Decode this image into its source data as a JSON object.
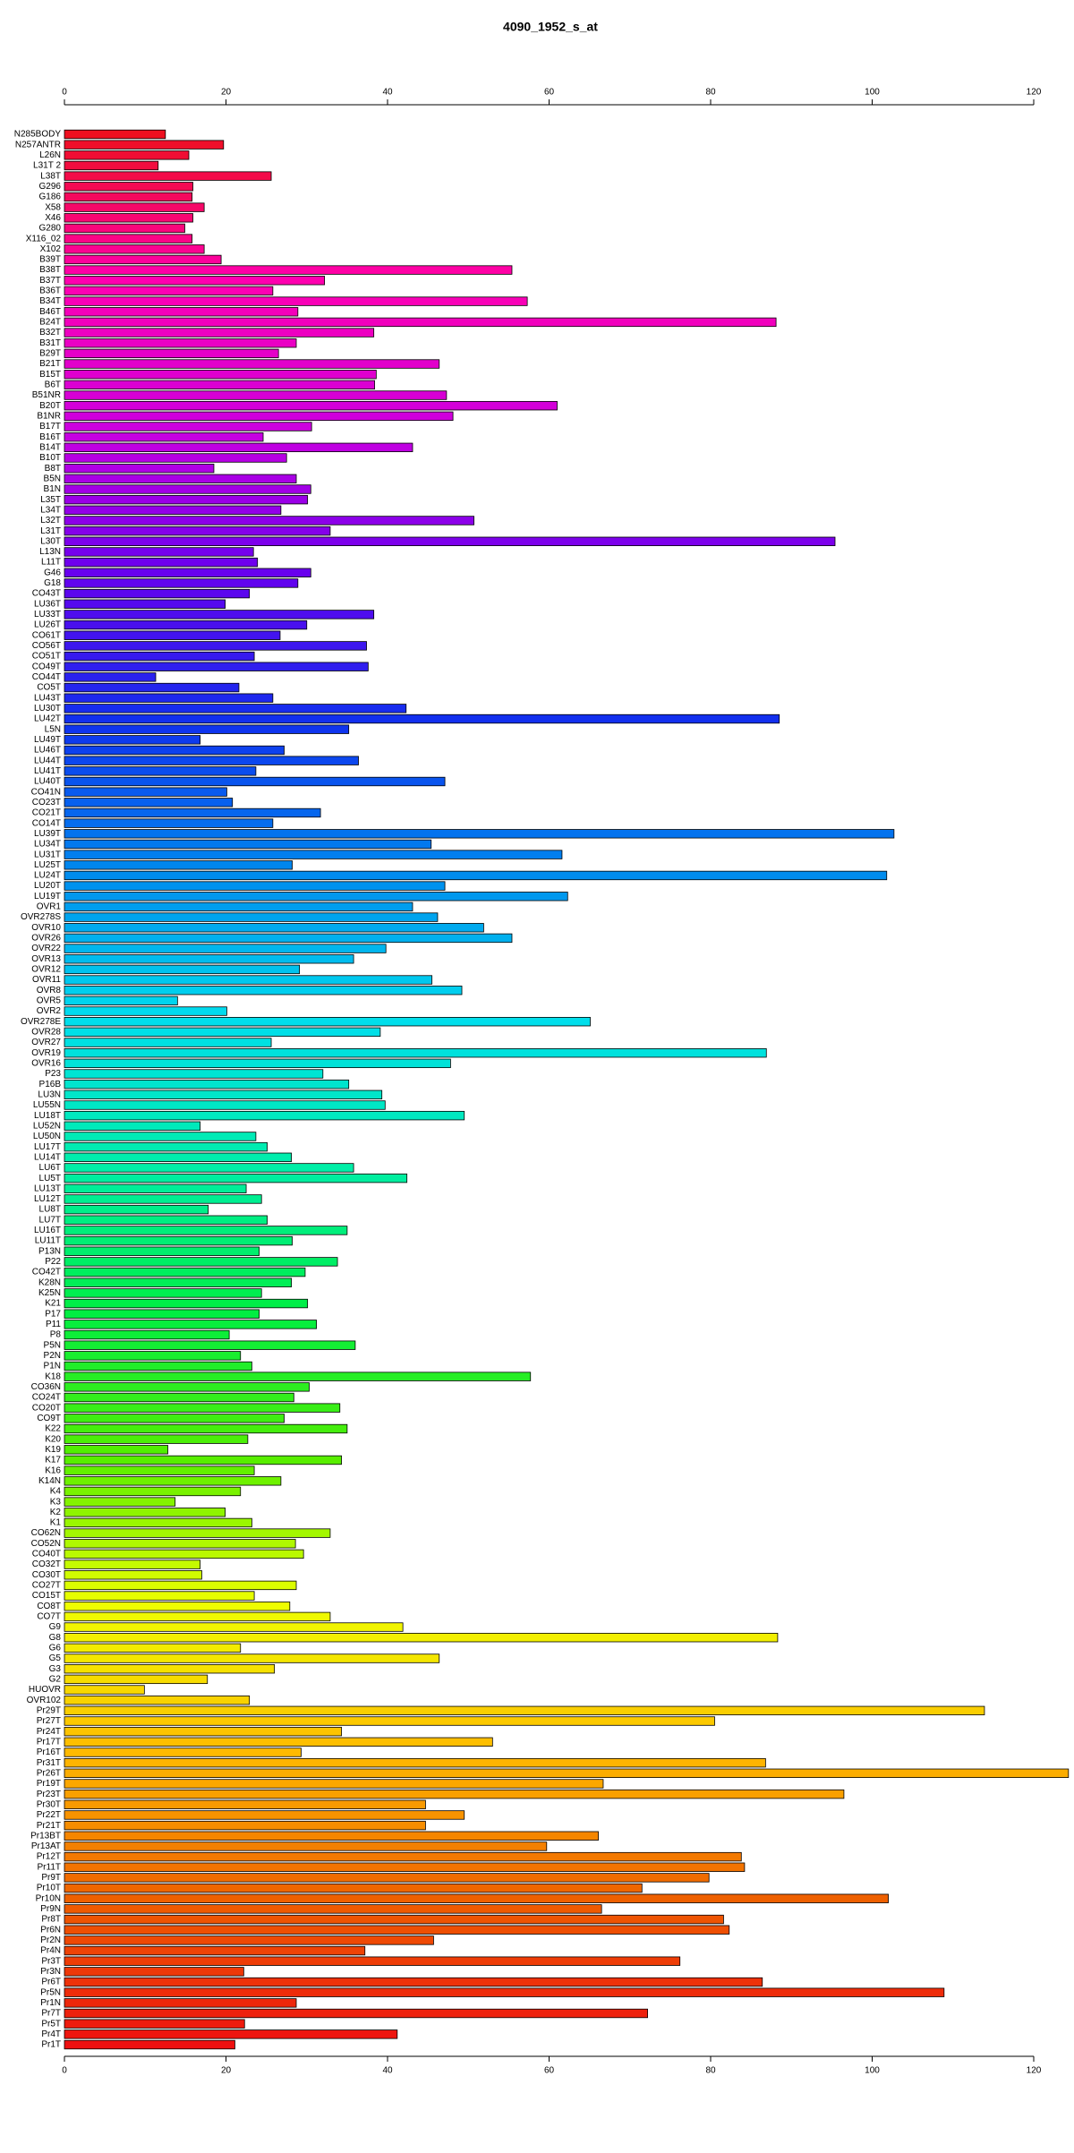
{
  "chart_data": {
    "type": "bar",
    "orientation": "horizontal",
    "title": "4090_1952_s_at",
    "categories": [
      "N285BODY",
      "N257ANTR",
      "L26N",
      "L31T 2",
      "L38T",
      "G296",
      "G186",
      "X58",
      "X46",
      "G280",
      "X116_02",
      "X102",
      "B39T",
      "B38T",
      "B37T",
      "B36T",
      "B34T",
      "B46T",
      "B24T",
      "B32T",
      "B31T",
      "B29T",
      "B21T",
      "B15T",
      "B6T",
      "B51NR",
      "B20T",
      "B1NR",
      "B17T",
      "B16T",
      "B14T",
      "B10T",
      "B8T",
      "B5N",
      "B1N",
      "L35T",
      "L34T",
      "L32T",
      "L31T",
      "L30T",
      "L13N",
      "L11T",
      "G46",
      "G18",
      "CO43T",
      "LU36T",
      "LU33T",
      "LU26T",
      "CO61T",
      "CO56T",
      "CO51T",
      "CO49T",
      "CO44T",
      "CO5T",
      "LU43T",
      "LU30T",
      "LU42T",
      "L5N",
      "LU49T",
      "LU46T",
      "LU44T",
      "LU41T",
      "LU40T",
      "CO41N",
      "CO23T",
      "CO21T",
      "CO14T",
      "LU39T",
      "LU34T",
      "LU31T",
      "LU25T",
      "LU24T",
      "LU20T",
      "LU19T",
      "OVR1",
      "OVR278S",
      "OVR10",
      "OVR26",
      "OVR22",
      "OVR13",
      "OVR12",
      "OVR11",
      "OVR8",
      "OVR5",
      "OVR2",
      "OVR278E",
      "OVR28",
      "OVR27",
      "OVR19",
      "OVR16",
      "P23",
      "P16B",
      "LU3N",
      "LU55N",
      "LU18T",
      "LU52N",
      "LU50N",
      "LU17T",
      "LU14T",
      "LU6T",
      "LU5T",
      "LU13T",
      "LU12T",
      "LU8T",
      "LU7T",
      "LU16T",
      "LU11T",
      "P13N",
      "P22",
      "CO42T",
      "K28N",
      "K25N",
      "K21",
      "P17",
      "P11",
      "P8",
      "P5N",
      "P2N",
      "P1N",
      "K18",
      "CO36N",
      "CO24T",
      "CO20T",
      "CO9T",
      "K22",
      "K20",
      "K19",
      "K17",
      "K16",
      "K14N",
      "K4",
      "K3",
      "K2",
      "K1",
      "CO62N",
      "CO52N",
      "CO40T",
      "CO32T",
      "CO30T",
      "CO27T",
      "CO15T",
      "CO8T",
      "CO7T",
      "G9",
      "G8",
      "G6",
      "G5",
      "G3",
      "G2",
      "HUOVR",
      "OVR102",
      "Pr29T",
      "Pr27T",
      "Pr24T",
      "Pr17T",
      "Pr16T",
      "Pr31T",
      "Pr26T",
      "Pr19T",
      "Pr23T",
      "Pr30T",
      "Pr22T",
      "Pr21T",
      "Pr13BT",
      "Pr13AT",
      "Pr12T",
      "Pr11T",
      "Pr9T",
      "Pr10T",
      "Pr10N",
      "Pr9N",
      "Pr8T",
      "Pr6N",
      "Pr2N",
      "Pr4N",
      "Pr3T",
      "Pr3N",
      "Pr6T",
      "Pr5N",
      "Pr1N",
      "Pr7T",
      "Pr5T",
      "Pr4T",
      "Pr1T"
    ],
    "values": [
      12.5,
      19.7,
      15.4,
      11.6,
      25.6,
      15.9,
      15.8,
      17.3,
      15.9,
      14.9,
      15.8,
      17.3,
      19.4,
      55.4,
      32.2,
      25.8,
      57.3,
      28.9,
      88.1,
      38.3,
      28.7,
      26.5,
      46.4,
      38.6,
      38.4,
      47.3,
      61.0,
      48.1,
      30.6,
      24.6,
      43.1,
      27.5,
      18.5,
      28.7,
      30.5,
      30.1,
      26.8,
      50.7,
      32.9,
      95.4,
      23.4,
      23.9,
      30.5,
      28.9,
      22.9,
      19.9,
      38.3,
      30.0,
      26.7,
      37.4,
      23.5,
      37.6,
      11.3,
      21.6,
      25.8,
      42.3,
      88.5,
      35.2,
      16.8,
      27.2,
      36.4,
      23.7,
      47.1,
      20.1,
      20.8,
      31.7,
      25.8,
      102.7,
      45.4,
      61.6,
      28.2,
      101.8,
      47.1,
      62.3,
      43.1,
      46.2,
      51.9,
      55.4,
      39.8,
      35.8,
      29.1,
      45.5,
      49.2,
      14.0,
      20.1,
      65.1,
      39.1,
      25.6,
      86.9,
      47.8,
      32.0,
      35.2,
      39.3,
      39.7,
      49.5,
      16.8,
      23.7,
      25.1,
      28.1,
      35.8,
      42.4,
      22.5,
      24.4,
      17.8,
      25.1,
      35.0,
      28.2,
      24.1,
      33.8,
      29.8,
      28.1,
      24.4,
      30.1,
      24.1,
      31.2,
      20.4,
      36.0,
      21.8,
      23.2,
      57.7,
      30.3,
      28.4,
      34.1,
      27.2,
      35.0,
      22.7,
      12.8,
      34.3,
      23.5,
      26.8,
      21.8,
      13.7,
      19.9,
      23.2,
      32.9,
      28.6,
      29.6,
      16.8,
      17.0,
      28.7,
      23.5,
      27.9,
      32.9,
      41.9,
      88.3,
      21.8,
      46.4,
      26.0,
      17.7,
      9.9,
      22.9,
      113.9,
      80.5,
      34.3,
      53.0,
      29.3,
      86.8,
      124.3,
      66.7,
      96.5,
      44.7,
      49.5,
      44.7,
      66.1,
      59.7,
      83.8,
      84.2,
      79.8,
      71.5,
      102.0,
      66.5,
      81.6,
      82.3,
      45.7,
      37.2,
      76.2,
      22.2,
      86.4,
      108.9,
      28.7,
      72.2,
      22.3,
      41.2,
      21.1
    ],
    "colors": [
      "#ee1020",
      "#ff00b0",
      "#cc00e0",
      "#6600ee",
      "#1030ee",
      "#0088ee",
      "#00ddee",
      "#00eeaa",
      "#00ee44",
      "#55ee00",
      "#eeff00",
      "#ffbb00",
      "#ee6000",
      "#ee1010"
    ],
    "xlim": [
      0,
      120
    ],
    "xticks": [
      0,
      20,
      40,
      60,
      80,
      100,
      120
    ]
  }
}
